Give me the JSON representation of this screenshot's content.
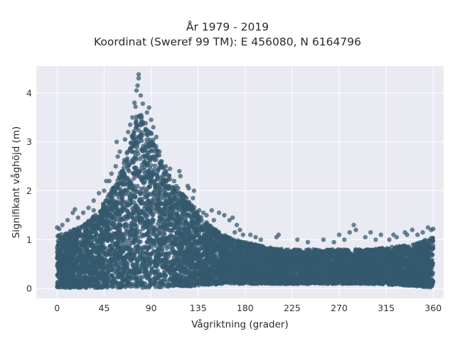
{
  "chart_data": {
    "type": "scatter",
    "title_line1": "År 1979 - 2019",
    "title_line2": "Koordinat (Sweref 99 TM): E 456080, N 6164796",
    "xlabel": "Vågriktning (grader)",
    "ylabel": "Signifikant våghöjd (m)",
    "xlim": [
      -20,
      370
    ],
    "ylim": [
      -0.2,
      4.55
    ],
    "xticks": [
      0,
      45,
      90,
      135,
      180,
      225,
      270,
      315,
      360
    ],
    "yticks": [
      0,
      1,
      2,
      3,
      4
    ],
    "grid": true,
    "marker_color": "#34596e",
    "background_color": "#e9eaf2",
    "series": [
      {
        "envelope": {
          "x": [
            0,
            10,
            20,
            30,
            40,
            50,
            60,
            70,
            75,
            80,
            85,
            90,
            95,
            100,
            110,
            120,
            130,
            140,
            150,
            160,
            170,
            180,
            200,
            220,
            240,
            260,
            280,
            300,
            320,
            340,
            360
          ],
          "upper": [
            1.1,
            1.15,
            1.25,
            1.4,
            1.6,
            1.95,
            2.35,
            3.0,
            3.5,
            3.6,
            3.4,
            3.2,
            2.9,
            2.6,
            2.2,
            1.95,
            1.7,
            1.4,
            1.25,
            1.1,
            1.0,
            0.95,
            0.85,
            0.8,
            0.8,
            0.8,
            0.8,
            0.8,
            0.85,
            0.9,
            1.05
          ],
          "lower": [
            0.02,
            0.02,
            0.02,
            0.02,
            0.02,
            0.02,
            0.02,
            0.02,
            0.02,
            0.02,
            0.02,
            0.03,
            0.03,
            0.03,
            0.05,
            0.05,
            0.05,
            0.08,
            0.08,
            0.1,
            0.1,
            0.1,
            0.1,
            0.1,
            0.1,
            0.1,
            0.1,
            0.1,
            0.08,
            0.06,
            0.02
          ]
        },
        "outliers": [
          [
            78,
            4.38
          ],
          [
            78,
            4.3
          ],
          [
            77,
            4.15
          ],
          [
            76,
            4.05
          ],
          [
            80,
            3.95
          ],
          [
            74,
            3.8
          ],
          [
            82,
            3.78
          ],
          [
            75,
            3.72
          ],
          [
            88,
            3.7
          ],
          [
            86,
            3.6
          ],
          [
            72,
            3.5
          ],
          [
            90,
            3.45
          ],
          [
            70,
            3.35
          ],
          [
            92,
            3.3
          ],
          [
            68,
            3.2
          ],
          [
            95,
            3.1
          ],
          [
            65,
            3.05
          ],
          [
            57,
            3.0
          ],
          [
            60,
            2.8
          ],
          [
            58,
            2.7
          ],
          [
            98,
            2.8
          ],
          [
            100,
            2.6
          ],
          [
            104,
            2.5
          ],
          [
            108,
            2.45
          ],
          [
            117,
            2.4
          ],
          [
            112,
            2.2
          ],
          [
            118,
            2.3
          ],
          [
            56,
            2.5
          ],
          [
            52,
            2.35
          ],
          [
            50,
            2.2
          ],
          [
            47,
            2.2
          ],
          [
            45,
            2.0
          ],
          [
            40,
            1.95
          ],
          [
            35,
            1.8
          ],
          [
            30,
            1.65
          ],
          [
            25,
            1.55
          ],
          [
            35,
            1.6
          ],
          [
            20,
            1.45
          ],
          [
            15,
            1.55
          ],
          [
            17,
            1.62
          ],
          [
            10,
            1.4
          ],
          [
            5,
            1.3
          ],
          [
            0,
            1.25
          ],
          [
            2,
            1.22
          ],
          [
            125,
            2.1
          ],
          [
            126,
            2.05
          ],
          [
            131,
            2.0
          ],
          [
            130,
            1.85
          ],
          [
            136,
            1.6
          ],
          [
            140,
            1.55
          ],
          [
            143,
            1.5
          ],
          [
            148,
            1.6
          ],
          [
            150,
            1.4
          ],
          [
            155,
            1.55
          ],
          [
            160,
            1.5
          ],
          [
            165,
            1.4
          ],
          [
            168,
            1.45
          ],
          [
            172,
            1.3
          ],
          [
            170,
            1.15
          ],
          [
            175,
            1.2
          ],
          [
            178,
            1.1
          ],
          [
            185,
            1.1
          ],
          [
            190,
            1.05
          ],
          [
            195,
            1.0
          ],
          [
            210,
            1.05
          ],
          [
            212,
            1.1
          ],
          [
            230,
            1.0
          ],
          [
            240,
            0.95
          ],
          [
            255,
            1.0
          ],
          [
            265,
            0.95
          ],
          [
            270,
            1.1
          ],
          [
            275,
            1.0
          ],
          [
            284,
            1.3
          ],
          [
            286,
            1.2
          ],
          [
            280,
            1.15
          ],
          [
            295,
            1.05
          ],
          [
            300,
            1.15
          ],
          [
            310,
            1.1
          ],
          [
            318,
            1.0
          ],
          [
            325,
            1.05
          ],
          [
            333,
            1.15
          ],
          [
            335,
            1.1
          ],
          [
            340,
            1.2
          ],
          [
            345,
            1.1
          ],
          [
            350,
            1.15
          ],
          [
            355,
            1.25
          ],
          [
            358,
            1.2
          ],
          [
            360,
            1.22
          ],
          [
            322,
            1.1
          ],
          [
            305,
            1.0
          ]
        ]
      }
    ]
  }
}
